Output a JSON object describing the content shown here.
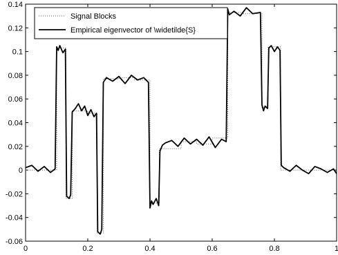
{
  "chart_data": {
    "type": "line",
    "title": "",
    "xlabel": "",
    "ylabel": "",
    "xlim": [
      0,
      1
    ],
    "ylim": [
      -0.06,
      0.14
    ],
    "grid": false,
    "legend_position": "top-right",
    "x_ticks": [
      "0",
      "0.2",
      "0.4",
      "0.6",
      "0.8",
      "1"
    ],
    "y_ticks": [
      "-0.06",
      "-0.04",
      "-0.02",
      "0",
      "0.02",
      "0.04",
      "0.06",
      "0.08",
      "0.1",
      "0.12",
      "0.14"
    ],
    "series": [
      {
        "name": "Signal Blocks",
        "style": "dotted",
        "color": "#555555",
        "x": [
          0,
          0.1,
          0.1,
          0.13,
          0.13,
          0.15,
          0.15,
          0.2,
          0.2,
          0.23,
          0.23,
          0.25,
          0.25,
          0.3,
          0.3,
          0.35,
          0.35,
          0.4,
          0.4,
          0.43,
          0.43,
          0.5,
          0.5,
          0.55,
          0.55,
          0.6,
          0.6,
          0.65,
          0.65,
          0.7,
          0.7,
          0.76,
          0.76,
          0.78,
          0.78,
          0.8,
          0.8,
          0.82,
          0.82,
          1
        ],
        "y": [
          0.0,
          0.0,
          0.103,
          0.103,
          -0.024,
          -0.024,
          0.05,
          0.05,
          0.048,
          0.048,
          -0.053,
          -0.053,
          0.077,
          0.077,
          0.078,
          0.078,
          0.076,
          0.076,
          -0.028,
          -0.028,
          0.018,
          0.018,
          0.024,
          0.024,
          0.022,
          0.022,
          0.027,
          0.027,
          0.133,
          0.133,
          0.132,
          0.132,
          0.053,
          0.053,
          0.104,
          0.104,
          0.104,
          0.104,
          0.0,
          0.0
        ]
      },
      {
        "name": "Empirical eigenvector of \\widetilde{S}",
        "style": "solid",
        "color": "#000000",
        "x": [
          0,
          0.02,
          0.04,
          0.06,
          0.08,
          0.095,
          0.1,
          0.105,
          0.11,
          0.12,
          0.128,
          0.132,
          0.14,
          0.145,
          0.15,
          0.16,
          0.17,
          0.18,
          0.19,
          0.2,
          0.21,
          0.22,
          0.228,
          0.232,
          0.24,
          0.245,
          0.25,
          0.26,
          0.28,
          0.3,
          0.32,
          0.34,
          0.36,
          0.38,
          0.395,
          0.4,
          0.405,
          0.41,
          0.42,
          0.428,
          0.432,
          0.44,
          0.45,
          0.47,
          0.49,
          0.51,
          0.53,
          0.55,
          0.57,
          0.59,
          0.61,
          0.63,
          0.645,
          0.65,
          0.655,
          0.67,
          0.69,
          0.71,
          0.73,
          0.755,
          0.76,
          0.765,
          0.77,
          0.778,
          0.782,
          0.79,
          0.8,
          0.81,
          0.818,
          0.822,
          0.83,
          0.85,
          0.87,
          0.89,
          0.91,
          0.93,
          0.95,
          0.97,
          0.99,
          1.0
        ],
        "y": [
          0.002,
          0.004,
          -0.001,
          0.003,
          -0.002,
          0.001,
          0.104,
          0.101,
          0.105,
          0.099,
          0.102,
          -0.022,
          -0.024,
          -0.021,
          0.049,
          0.052,
          0.056,
          0.05,
          0.054,
          0.046,
          0.051,
          0.045,
          0.048,
          -0.052,
          -0.054,
          -0.05,
          0.074,
          0.078,
          0.075,
          0.079,
          0.073,
          0.08,
          0.076,
          0.078,
          0.074,
          -0.032,
          -0.026,
          -0.029,
          -0.024,
          -0.03,
          0.016,
          0.021,
          0.023,
          0.025,
          0.02,
          0.027,
          0.022,
          0.026,
          0.021,
          0.028,
          0.019,
          0.026,
          0.024,
          0.136,
          0.131,
          0.134,
          0.13,
          0.137,
          0.132,
          0.133,
          0.055,
          0.05,
          0.054,
          0.052,
          0.103,
          0.105,
          0.1,
          0.104,
          0.101,
          0.004,
          0.002,
          -0.001,
          0.004,
          0.0,
          -0.003,
          0.003,
          0.001,
          -0.002,
          0.001,
          -0.003
        ]
      }
    ]
  }
}
